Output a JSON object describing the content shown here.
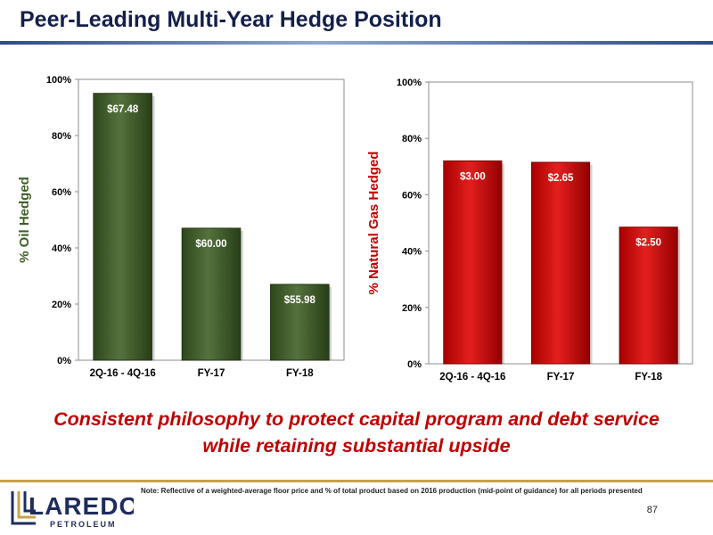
{
  "slide": {
    "title": "Peer-Leading Multi-Year Hedge Position",
    "tagline_line1": "Consistent philosophy to protect capital program and debt service",
    "tagline_line2": "while retaining substantial upside",
    "footnote": "Note: Reflective of a weighted-average floor price and % of total product based on 2016 production (mid-point of guidance) for all periods presented",
    "page_number": "87",
    "logo_main": "LAREDO",
    "logo_sub": "PETROLEUM",
    "logo_text_color": "#1f2d5c",
    "accent_gold": "#c7a24a"
  },
  "chart_data": [
    {
      "type": "bar",
      "categories": [
        "2Q-16 - 4Q-16",
        "FY-17",
        "FY-18"
      ],
      "values": [
        95,
        47,
        27
      ],
      "unit": "%",
      "data_labels": [
        "$67.48",
        "$60.00",
        "$55.98"
      ],
      "ylabel": "% Oil Hedged",
      "ylim": [
        0,
        100
      ],
      "yticks": [
        "0%",
        "20%",
        "40%",
        "60%",
        "80%",
        "100%"
      ],
      "grid": false,
      "bar_color": "#3d5f23",
      "ylabel_color": "#3d5f23"
    },
    {
      "type": "bar",
      "categories": [
        "2Q-16 - 4Q-16",
        "FY-17",
        "FY-18"
      ],
      "values": [
        72,
        71.5,
        48.5
      ],
      "unit": "%",
      "data_labels": [
        "$3.00",
        "$2.65",
        "$2.50"
      ],
      "ylabel": "% Natural Gas Hedged",
      "ylim": [
        0,
        100
      ],
      "yticks": [
        "0%",
        "20%",
        "40%",
        "60%",
        "80%",
        "100%"
      ],
      "grid": false,
      "bar_color": "#e00000",
      "ylabel_color": "#c00000"
    }
  ]
}
